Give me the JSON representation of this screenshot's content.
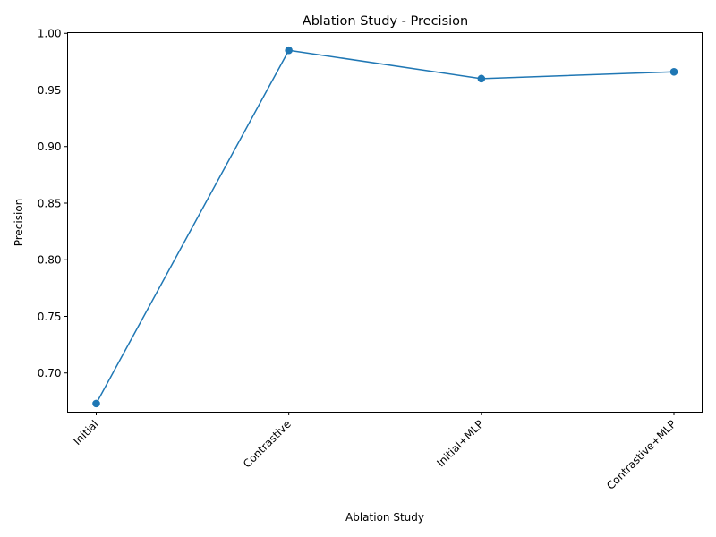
{
  "chart_data": {
    "type": "line",
    "title": "Ablation Study - Precision",
    "xlabel": "Ablation Study",
    "ylabel": "Precision",
    "categories": [
      "Initial",
      "Contrastive",
      "Initial+MLP",
      "Contrastive+MLP"
    ],
    "series": [
      {
        "values": [
          0.673,
          0.985,
          0.96,
          0.966
        ],
        "color": "#1f77b4",
        "marker": "circle"
      }
    ],
    "ylim": [
      0.6654,
      1.0006
    ],
    "yticks": [
      0.7,
      0.75,
      0.8,
      0.85,
      0.9,
      0.95,
      1.0
    ],
    "ytick_labels": [
      "0.70",
      "0.75",
      "0.80",
      "0.85",
      "0.90",
      "0.95",
      "1.00"
    ],
    "grid": false,
    "legend": false
  }
}
